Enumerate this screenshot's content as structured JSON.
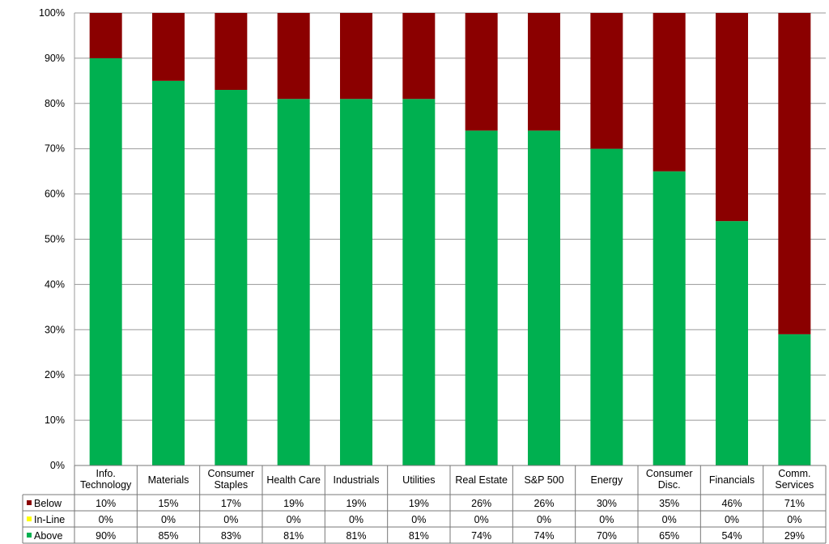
{
  "chart_data": {
    "type": "bar",
    "stacked": true,
    "categories": [
      "Info.\nTechnology",
      "Materials",
      "Consumer\nStaples",
      "Health Care",
      "Industrials",
      "Utilities",
      "Real Estate",
      "S&P 500",
      "Energy",
      "Consumer\nDisc.",
      "Financials",
      "Comm.\nServices"
    ],
    "series": [
      {
        "name": "Below",
        "color": "#8B0000",
        "values": [
          10,
          15,
          17,
          19,
          19,
          19,
          26,
          26,
          30,
          35,
          46,
          71
        ]
      },
      {
        "name": "In-Line",
        "color": "#FFFF00",
        "values": [
          0,
          0,
          0,
          0,
          0,
          0,
          0,
          0,
          0,
          0,
          0,
          0
        ]
      },
      {
        "name": "Above",
        "color": "#00B050",
        "values": [
          90,
          85,
          83,
          81,
          81,
          81,
          74,
          74,
          70,
          65,
          54,
          29
        ]
      }
    ],
    "ylim": [
      0,
      100
    ],
    "yticks": [
      "0%",
      "10%",
      "20%",
      "30%",
      "40%",
      "50%",
      "60%",
      "70%",
      "80%",
      "90%",
      "100%"
    ],
    "grid": true,
    "legend": "data-table"
  }
}
